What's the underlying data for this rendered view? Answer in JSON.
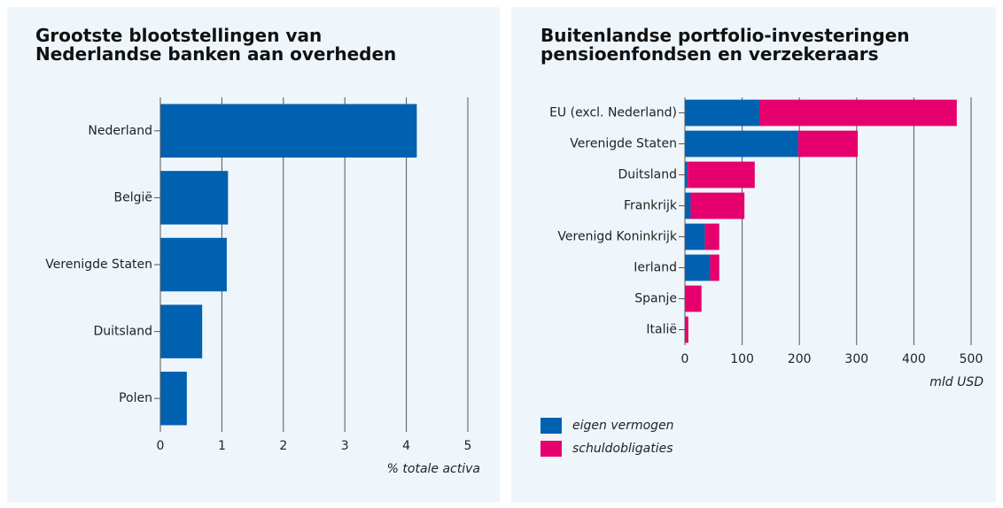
{
  "chart_data": [
    {
      "type": "bar",
      "title": "Grootste blootstellingen van Nederlandse banken aan overheden",
      "categories": [
        "Nederland",
        "België",
        "Verenigde Staten",
        "Duitsland",
        "Polen"
      ],
      "values": [
        4.17,
        1.1,
        1.08,
        0.68,
        0.43
      ],
      "color": "#0061b1",
      "xlim": [
        0,
        5
      ],
      "xticks": [
        0,
        1,
        2,
        3,
        4,
        5
      ],
      "xlabel": "% totale activa",
      "grid": true
    },
    {
      "type": "bar",
      "title": "Buitenlandse portfolio-investeringen pensioenfondsen en verzekeraars",
      "categories": [
        "EU (excl. Nederland)",
        "Verenigde Staten",
        "Duitsland",
        "Frankrijk",
        "Verenigd Koninkrijk",
        "Ierland",
        "Spanje",
        "Italië"
      ],
      "series": [
        {
          "name": "eigen vermogen",
          "color": "#0061b1",
          "values": [
            130,
            198,
            5,
            10,
            35,
            44,
            0,
            0
          ]
        },
        {
          "name": "schuldobligaties",
          "color": "#e5006d",
          "values": [
            345,
            104,
            117,
            94,
            25,
            16,
            29,
            6
          ]
        }
      ],
      "xlim": [
        0,
        500
      ],
      "xticks": [
        0,
        100,
        200,
        300,
        400,
        500
      ],
      "xlabel": "mld USD",
      "grid": true,
      "legend": "bottom-left"
    }
  ]
}
